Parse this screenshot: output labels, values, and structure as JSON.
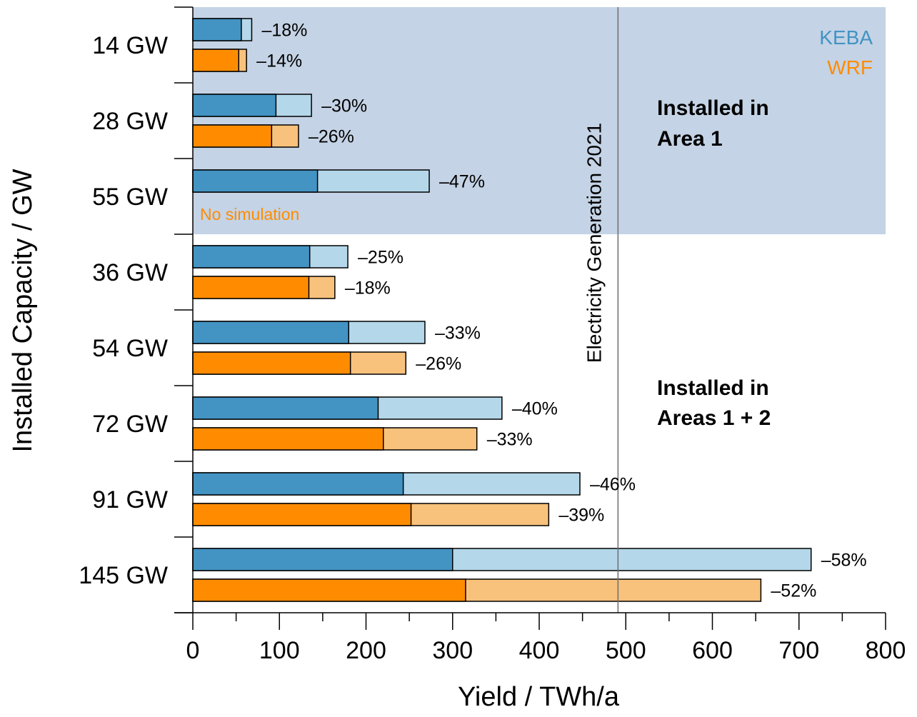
{
  "chart_data": {
    "type": "bar",
    "orientation": "horizontal",
    "xlabel": "Yield / TWh/a",
    "ylabel": "Installed Capacity / GW",
    "xlim": [
      0,
      800
    ],
    "xticks": [
      "0",
      "100",
      "200",
      "300",
      "400",
      "500",
      "600",
      "700",
      "800"
    ],
    "grid": false,
    "categories": [
      "14 GW",
      "28 GW",
      "55 GW",
      "36 GW",
      "54 GW",
      "72 GW",
      "91 GW",
      "145 GW"
    ],
    "series": [
      {
        "name": "KEBA",
        "color": "#4393c3",
        "light_color": "#b4d7ea",
        "values": [
          56,
          96,
          144,
          135,
          180,
          214,
          243,
          300
        ],
        "totals": [
          68,
          137,
          273,
          179,
          268,
          357,
          447,
          714
        ],
        "labels": [
          "–18%",
          "–30%",
          "–47%",
          "–25%",
          "–33%",
          "–40%",
          "–46%",
          "–58%"
        ]
      },
      {
        "name": "WRF",
        "color": "#ff8c00",
        "light_color": "#f8c27c",
        "values": [
          53,
          91,
          null,
          134,
          182,
          220,
          252,
          315
        ],
        "totals": [
          62,
          122,
          null,
          164,
          246,
          328,
          411,
          656
        ],
        "labels": [
          "–14%",
          "–26%",
          "",
          "–18%",
          "–26%",
          "–33%",
          "–39%",
          "–52%"
        ]
      }
    ],
    "reference_line": {
      "x": 491,
      "label": "Electricity Generation 2021"
    },
    "regions": [
      {
        "label_line1": "Installed in",
        "label_line2": "Area 1",
        "color": "#c4d3e5",
        "category_range": [
          0,
          2
        ]
      },
      {
        "label_line1": "Installed in",
        "label_line2": "Areas 1 + 2",
        "color": "#ffffff",
        "category_range": [
          3,
          7
        ]
      }
    ],
    "annotations": [
      {
        "text": "No simulation",
        "category_index": 2
      }
    ],
    "legend_position": "top-right"
  }
}
